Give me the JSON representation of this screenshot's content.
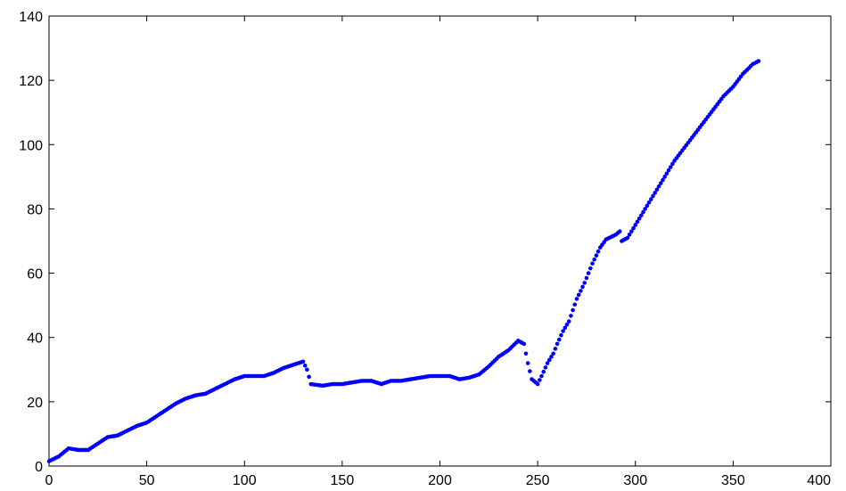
{
  "chart_data": {
    "type": "scatter",
    "title": "",
    "xlabel": "",
    "ylabel": "",
    "xlim": [
      0,
      400
    ],
    "ylim": [
      0,
      140
    ],
    "grid": false,
    "x_ticks": [
      0,
      50,
      100,
      150,
      200,
      250,
      300,
      350,
      400
    ],
    "y_ticks": [
      0,
      20,
      40,
      60,
      80,
      100,
      120,
      140
    ],
    "marker_color": "#0000ff",
    "series": [
      {
        "anchors": [
          [
            0,
            1.5
          ],
          [
            5,
            3
          ],
          [
            10,
            5.5
          ],
          [
            15,
            5
          ],
          [
            20,
            5
          ],
          [
            25,
            7
          ],
          [
            30,
            9
          ],
          [
            35,
            9.5
          ],
          [
            40,
            11
          ],
          [
            45,
            12.5
          ],
          [
            50,
            13.5
          ],
          [
            55,
            15.5
          ],
          [
            60,
            17.5
          ],
          [
            65,
            19.5
          ],
          [
            70,
            21
          ],
          [
            75,
            22
          ],
          [
            80,
            22.5
          ],
          [
            85,
            24
          ],
          [
            90,
            25.5
          ],
          [
            95,
            27
          ],
          [
            100,
            28
          ],
          [
            105,
            28
          ],
          [
            110,
            28
          ],
          [
            115,
            29
          ],
          [
            120,
            30.5
          ],
          [
            125,
            31.5
          ],
          [
            130,
            32.5
          ],
          [
            132,
            30
          ],
          [
            134,
            25.5
          ],
          [
            140,
            25
          ],
          [
            145,
            25.5
          ],
          [
            150,
            25.5
          ],
          [
            155,
            26
          ],
          [
            160,
            26.5
          ],
          [
            165,
            26.5
          ],
          [
            170,
            25.5
          ],
          [
            175,
            26.5
          ],
          [
            180,
            26.5
          ],
          [
            185,
            27
          ],
          [
            190,
            27.5
          ],
          [
            195,
            28
          ],
          [
            200,
            28
          ],
          [
            205,
            28
          ],
          [
            210,
            27
          ],
          [
            215,
            27.5
          ],
          [
            220,
            28.5
          ],
          [
            225,
            31
          ],
          [
            230,
            34
          ],
          [
            235,
            36
          ],
          [
            240,
            39
          ],
          [
            243,
            38
          ],
          [
            245,
            32
          ],
          [
            247,
            27
          ],
          [
            250,
            25.5
          ],
          [
            252,
            28
          ],
          [
            255,
            32
          ],
          [
            258,
            35
          ],
          [
            260,
            38
          ],
          [
            263,
            42
          ],
          [
            266,
            45
          ],
          [
            270,
            52
          ],
          [
            274,
            57
          ],
          [
            278,
            63
          ],
          [
            282,
            68
          ],
          [
            285,
            70.5
          ],
          [
            290,
            72
          ],
          [
            292,
            73
          ],
          [
            293,
            70
          ],
          [
            296,
            71
          ],
          [
            300,
            75
          ],
          [
            305,
            80
          ],
          [
            310,
            85
          ],
          [
            315,
            90
          ],
          [
            320,
            95
          ],
          [
            325,
            99
          ],
          [
            330,
            103
          ],
          [
            335,
            107
          ],
          [
            340,
            111
          ],
          [
            345,
            115
          ],
          [
            350,
            118
          ],
          [
            355,
            122
          ],
          [
            360,
            125
          ],
          [
            363,
            126
          ]
        ],
        "points_per_unit": 1
      }
    ]
  }
}
